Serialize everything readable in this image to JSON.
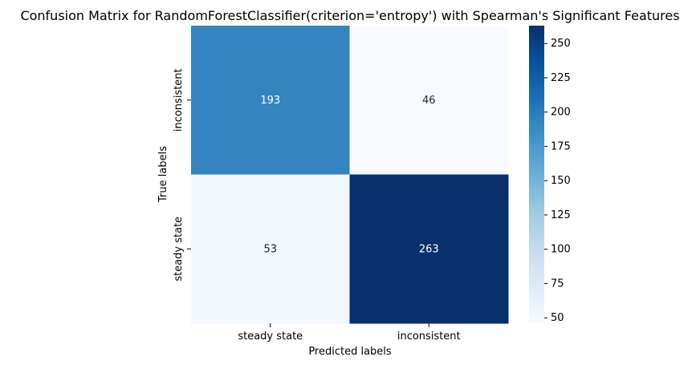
{
  "chart_data": {
    "type": "heatmap",
    "title": "Confusion Matrix for RandomForestClassifier(criterion='entropy') with Spearman's Significant Features",
    "xlabel": "Predicted labels",
    "ylabel": "True labels",
    "x_categories": [
      "steady state",
      "inconsistent"
    ],
    "y_categories": [
      "inconsistent",
      "steady state"
    ],
    "values": [
      [
        193,
        46
      ],
      [
        53,
        263
      ]
    ],
    "colormap": "Blues",
    "colorbar": {
      "min": 46,
      "max": 263,
      "ticks": [
        50,
        75,
        100,
        125,
        150,
        175,
        200,
        225,
        250
      ]
    },
    "grid": false,
    "legend": "colorbar-right"
  }
}
